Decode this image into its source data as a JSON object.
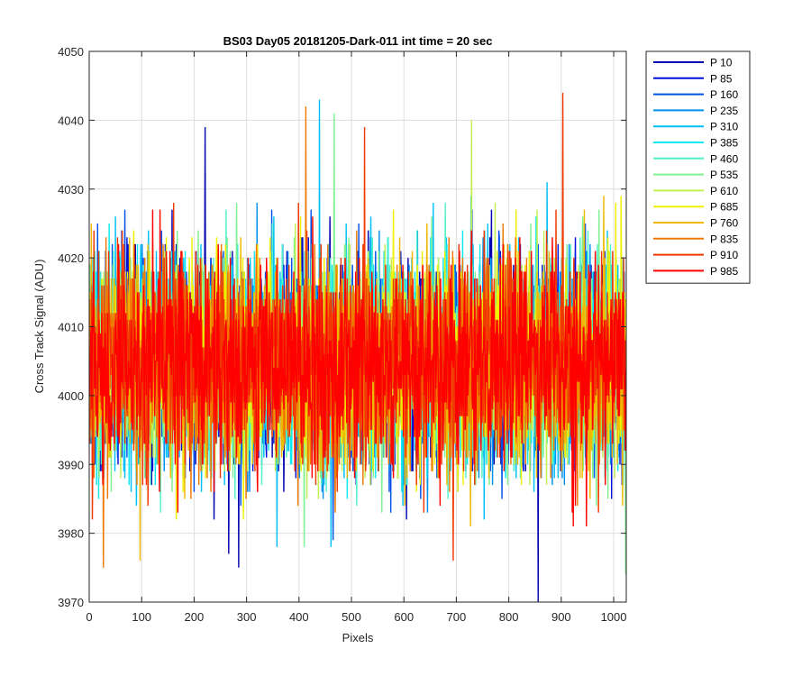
{
  "chart_data": {
    "type": "line",
    "title": "BS03 Day05 20181205-Dark-011 int time = 20 sec",
    "xlabel": "Pixels",
    "ylabel": "Cross Track Signal (ADU)",
    "xlim": [
      0,
      1024
    ],
    "ylim": [
      3970,
      4050
    ],
    "xticks": [
      0,
      100,
      200,
      300,
      400,
      500,
      600,
      700,
      800,
      900,
      1000
    ],
    "yticks": [
      3970,
      3980,
      3990,
      4000,
      4010,
      4020,
      4030,
      4040,
      4050
    ],
    "grid": true,
    "legend_position": "outside-top-right",
    "n_points_per_series": 1024,
    "typical_mean": 4005,
    "typical_range": [
      3984,
      4028
    ],
    "series": [
      {
        "name": "P 10",
        "color": "#0000b0"
      },
      {
        "name": "P 85",
        "color": "#0010d8"
      },
      {
        "name": "P 160",
        "color": "#0050e8"
      },
      {
        "name": "P 235",
        "color": "#0090f0"
      },
      {
        "name": "P 310",
        "color": "#00c0f8"
      },
      {
        "name": "P 385",
        "color": "#10e8f0"
      },
      {
        "name": "P 460",
        "color": "#50f0c8"
      },
      {
        "name": "P 535",
        "color": "#80f090"
      },
      {
        "name": "P 610",
        "color": "#c0f050"
      },
      {
        "name": "P 685",
        "color": "#f0f000"
      },
      {
        "name": "P 760",
        "color": "#f0b800"
      },
      {
        "name": "P 835",
        "color": "#f07800"
      },
      {
        "name": "P 910",
        "color": "#f03800"
      },
      {
        "name": "P 985",
        "color": "#ff0000"
      }
    ],
    "notable_points": [
      {
        "series": "P 910",
        "x": 902,
        "y": 4044
      },
      {
        "series": "P 310",
        "x": 438,
        "y": 4043
      },
      {
        "series": "P 835",
        "x": 412,
        "y": 4042
      },
      {
        "series": "P 535",
        "x": 466,
        "y": 4041
      },
      {
        "series": "P 610",
        "x": 728,
        "y": 4040
      },
      {
        "series": "P 10",
        "x": 220,
        "y": 4039
      },
      {
        "series": "P 910",
        "x": 524,
        "y": 4039
      },
      {
        "series": "P 10",
        "x": 855,
        "y": 3970
      },
      {
        "series": "P 535",
        "x": 1022,
        "y": 3974
      },
      {
        "series": "P 835",
        "x": 26,
        "y": 3975
      },
      {
        "series": "P 10",
        "x": 284,
        "y": 3975
      },
      {
        "series": "P 760",
        "x": 96,
        "y": 3976
      },
      {
        "series": "P 10",
        "x": 265,
        "y": 3977
      },
      {
        "series": "P 535",
        "x": 409,
        "y": 3978
      }
    ]
  }
}
